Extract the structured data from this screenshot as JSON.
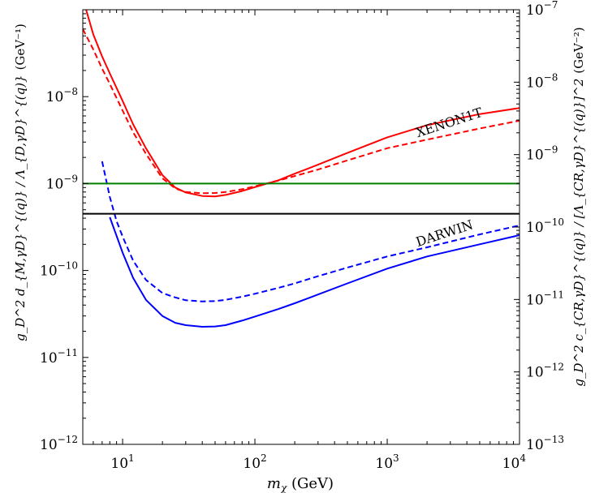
{
  "chart_data": {
    "type": "line",
    "title": "",
    "xlabel": {
      "base": "m",
      "sub": "χ",
      "rest": " (GeV)"
    },
    "ylabel_left": {
      "expr": "g_D^2 d_{M,γD}^{(q)} / Λ_{D,γD}^{(q)}",
      "unit": "(GeV⁻¹)"
    },
    "ylabel_right": {
      "expr": "g_D^2 c_{CR,γD}^{(q)} / [Λ_{CR,γD}^{(q)}]^2",
      "unit": "(GeV⁻²)"
    },
    "xscale": "log",
    "yscale": "log",
    "xlim": [
      5,
      10000
    ],
    "ylim_left": [
      1e-12,
      1e-07
    ],
    "ylim_right": [
      1e-13,
      1e-07
    ],
    "x_ticks": [
      {
        "value": 10,
        "base": "10",
        "exp": "1"
      },
      {
        "value": 100,
        "base": "10",
        "exp": "2"
      },
      {
        "value": 1000,
        "base": "10",
        "exp": "3"
      },
      {
        "value": 10000,
        "base": "10",
        "exp": "4"
      }
    ],
    "left_ticks": [
      {
        "value": 1e-12,
        "base": "10",
        "exp": "−12"
      },
      {
        "value": 1e-11,
        "base": "10",
        "exp": "−11"
      },
      {
        "value": 1e-10,
        "base": "10",
        "exp": "−10"
      },
      {
        "value": 1e-09,
        "base": "10",
        "exp": "−9"
      },
      {
        "value": 1e-08,
        "base": "10",
        "exp": "−8"
      }
    ],
    "right_ticks": [
      {
        "value": 1e-13,
        "base": "10",
        "exp": "−13"
      },
      {
        "value": 1e-12,
        "base": "10",
        "exp": "−12"
      },
      {
        "value": 1e-11,
        "base": "10",
        "exp": "−11"
      },
      {
        "value": 1e-10,
        "base": "10",
        "exp": "−10"
      },
      {
        "value": 1e-09,
        "base": "10",
        "exp": "−9"
      },
      {
        "value": 1e-08,
        "base": "10",
        "exp": "−8"
      },
      {
        "value": 1e-07,
        "base": "10",
        "exp": "−7"
      }
    ],
    "series": [
      {
        "name": "XENON1T solid",
        "color": "#ff0000",
        "style": "solid",
        "x": [
          5.3,
          6,
          7,
          8,
          10,
          12,
          15,
          20,
          25,
          30,
          40,
          50,
          60,
          80,
          100,
          150,
          200,
          300,
          500,
          1000,
          2000,
          5000,
          10000
        ],
        "y": [
          1e-07,
          5.2e-08,
          2.9e-08,
          1.85e-08,
          8.9e-09,
          4.8e-09,
          2.55e-09,
          1.25e-09,
          9e-10,
          7.9e-10,
          7.2e-10,
          7.1e-10,
          7.4e-10,
          8.2e-10,
          9.1e-10,
          1.09e-09,
          1.3e-09,
          1.65e-09,
          2.25e-09,
          3.4e-09,
          4.7e-09,
          6.3e-09,
          7.4e-09
        ]
      },
      {
        "name": "XENON1T dashed",
        "color": "#ff0000",
        "style": "dashed",
        "x": [
          5,
          6,
          7,
          8,
          10,
          12,
          15,
          20,
          25,
          30,
          40,
          50,
          60,
          80,
          100,
          150,
          200,
          300,
          500,
          1000,
          2000,
          5000,
          10000
        ],
        "y": [
          6e-08,
          3.5e-08,
          2.1e-08,
          1.4e-08,
          6.9e-09,
          3.9e-09,
          2.2e-09,
          1.15e-09,
          8.8e-10,
          8e-10,
          7.75e-10,
          7.8e-10,
          8e-10,
          8.6e-10,
          9.3e-10,
          1.08e-09,
          1.22e-09,
          1.45e-09,
          1.85e-09,
          2.55e-09,
          3.2e-09,
          4.3e-09,
          5.3e-09
        ]
      },
      {
        "name": "DARWIN solid",
        "color": "#0000ff",
        "style": "solid",
        "x": [
          8,
          9,
          10,
          12,
          15,
          20,
          25,
          30,
          40,
          50,
          60,
          80,
          100,
          150,
          200,
          300,
          500,
          1000,
          2000,
          5000,
          10000
        ],
        "y": [
          4.1e-10,
          2.5e-10,
          1.6e-10,
          8.2e-11,
          4.6e-11,
          3e-11,
          2.5e-11,
          2.35e-11,
          2.25e-11,
          2.27e-11,
          2.35e-11,
          2.65e-11,
          2.95e-11,
          3.6e-11,
          4.2e-11,
          5.3e-11,
          7.1e-11,
          1.05e-10,
          1.45e-10,
          2e-10,
          2.55e-10
        ]
      },
      {
        "name": "DARWIN dashed",
        "color": "#0000ff",
        "style": "dashed",
        "x": [
          7,
          8,
          9,
          10,
          12,
          15,
          20,
          25,
          30,
          40,
          50,
          60,
          80,
          100,
          150,
          200,
          300,
          500,
          1000,
          2000,
          5000,
          10000
        ],
        "y": [
          1.8e-09,
          7e-10,
          3.7e-10,
          2.45e-10,
          1.3e-10,
          7.8e-11,
          5.5e-11,
          4.9e-11,
          4.55e-11,
          4.4e-11,
          4.45e-11,
          4.6e-11,
          5e-11,
          5.4e-11,
          6.3e-11,
          7.1e-11,
          8.6e-11,
          1.08e-10,
          1.45e-10,
          1.85e-10,
          2.6e-10,
          3.3e-10
        ]
      },
      {
        "name": "green reference",
        "color": "#008000",
        "style": "solid",
        "x": [
          5,
          10000
        ],
        "y": [
          1e-09,
          1e-09
        ]
      },
      {
        "name": "black reference",
        "color": "#000000",
        "style": "solid",
        "x": [
          5,
          10000
        ],
        "y": [
          4.5e-10,
          4.5e-10
        ]
      }
    ],
    "annotations": [
      {
        "text": "XENON1T",
        "x": 1700,
        "y": 3.4e-09,
        "angle": -18
      },
      {
        "text": "DARWIN",
        "x": 1700,
        "y": 1.88e-10,
        "angle": -18
      }
    ]
  }
}
